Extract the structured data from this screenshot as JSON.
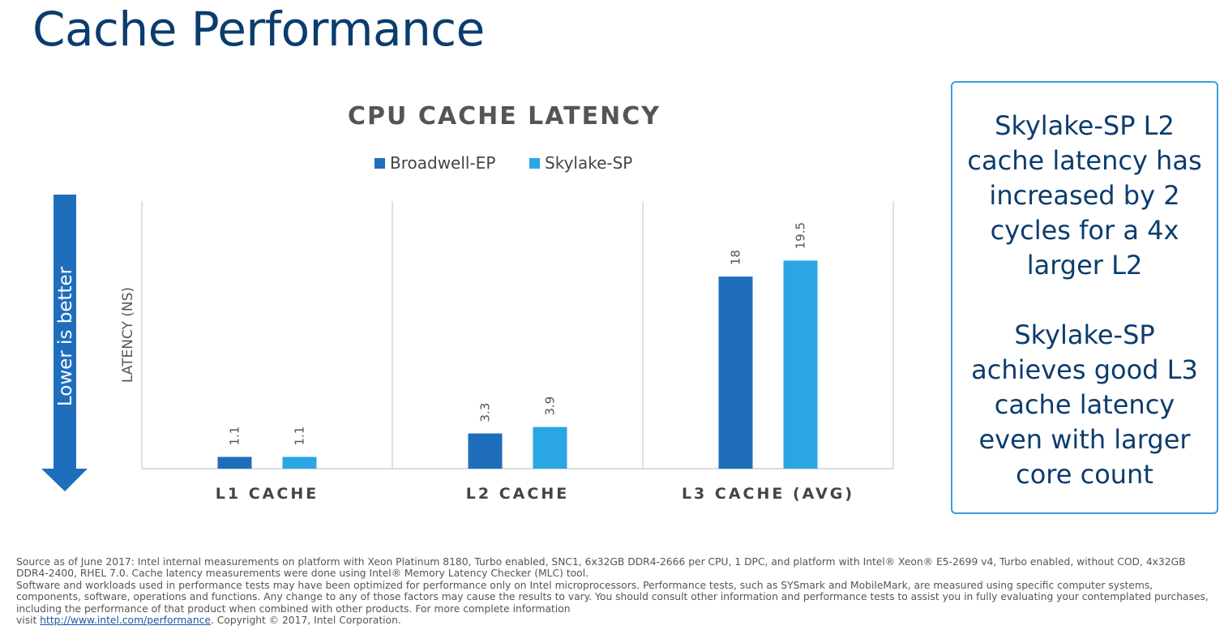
{
  "slide": {
    "title": "Cache Performance"
  },
  "arrow": {
    "label": "Lower is better",
    "color": "#1f6ebc"
  },
  "chart_data": {
    "type": "bar",
    "title": "CPU CACHE LATENCY",
    "xlabel": "",
    "ylabel": "LATENCY (NS)",
    "ylim": [
      0,
      22
    ],
    "grid": false,
    "legend_position": "top-center",
    "categories": [
      "L1 CACHE",
      "L2 CACHE",
      "L3 CACHE (AVG)"
    ],
    "series": [
      {
        "name": "Broadwell-EP",
        "color": "#1f6ebc",
        "values": [
          1.1,
          3.3,
          18
        ],
        "labels": [
          "1.1",
          "3.3",
          "18"
        ]
      },
      {
        "name": "Skylake-SP",
        "color": "#29a6e3",
        "values": [
          1.1,
          3.9,
          19.5
        ],
        "labels": [
          "1.1",
          "3.9",
          "19.5"
        ]
      }
    ]
  },
  "callout": {
    "paragraph1": "Skylake-SP L2 cache latency has increased by 2 cycles for a 4x larger L2",
    "paragraph2": "Skylake-SP achieves good L3 cache latency even with larger core count",
    "border_color": "#3aa0dc",
    "text_color": "#0b3c6e"
  },
  "footnote": {
    "line1": "Source as of June 2017: Intel internal measurements on platform with Xeon Platinum 8180, Turbo enabled, SNC1, 6x32GB DDR4-2666 per CPU, 1 DPC, and platform with Intel® Xeon® E5-2699 v4, Turbo enabled, without COD, 4x32GB DDR4-2400, RHEL 7.0. Cache latency measurements were done using Intel® Memory Latency Checker (MLC) tool.",
    "line2": "Software and workloads used in performance tests may have been optimized for performance only on Intel microprocessors. Performance tests, such as SYSmark and MobileMark, are measured using specific computer systems, components, software, operations and functions. Any change to any of those factors may cause the results to vary. You should consult other information and performance tests to assist you in fully evaluating your contemplated purchases, including the performance of that product when combined with other products.  For more complete information",
    "visit_prefix": "visit ",
    "link_text": "http://www.intel.com/performance",
    "copyright": ".  Copyright © 2017, Intel Corporation."
  }
}
